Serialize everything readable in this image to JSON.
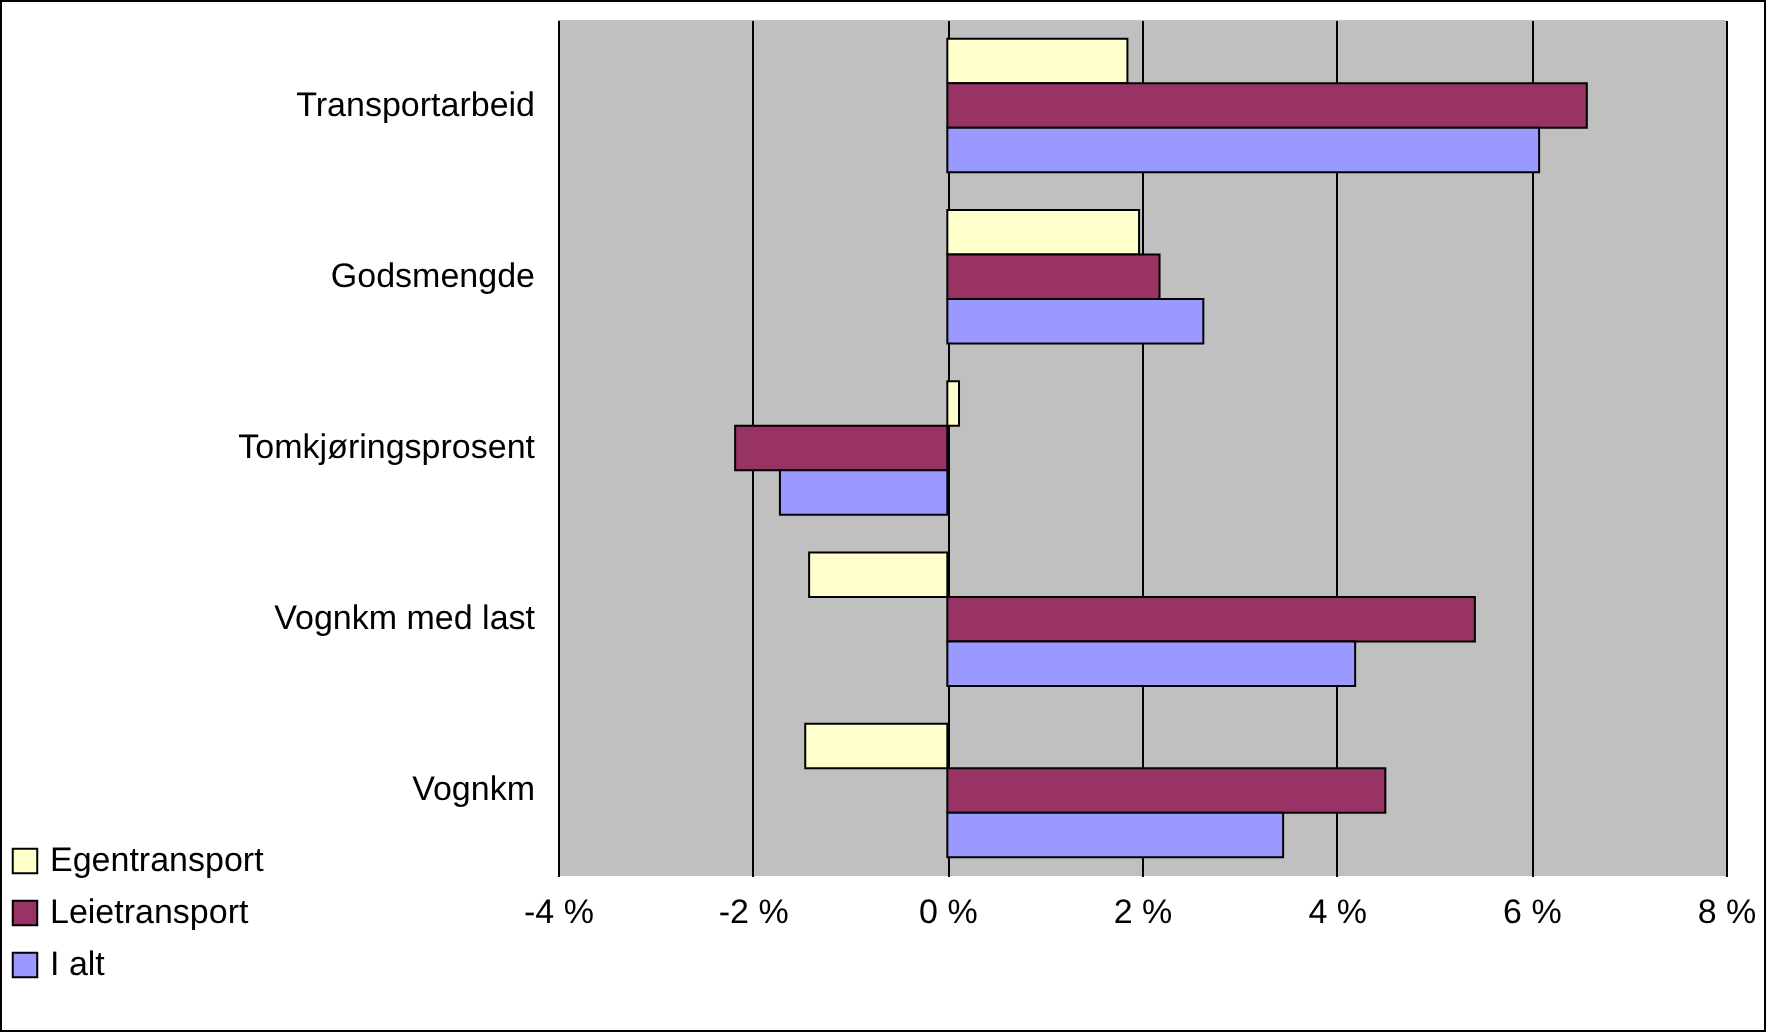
{
  "chart_data": {
    "type": "bar",
    "orientation": "horizontal",
    "categories": [
      "Transportarbeid",
      "Godsmengde",
      "Tomkjøringsprosent",
      "Vognkm med last",
      "Vognkm"
    ],
    "series": [
      {
        "name": "Egentransport",
        "color": "#ffffcc",
        "values": [
          1.85,
          1.97,
          0.12,
          -1.42,
          -1.46
        ]
      },
      {
        "name": "Leietransport",
        "color": "#993366",
        "values": [
          6.57,
          2.18,
          -2.18,
          5.42,
          4.5
        ]
      },
      {
        "name": "I alt",
        "color": "#9999ff",
        "values": [
          6.08,
          2.63,
          -1.72,
          4.19,
          3.45
        ]
      }
    ],
    "xlim": [
      -4,
      8
    ],
    "xticks": [
      {
        "value": -4,
        "label": "-4 %"
      },
      {
        "value": -2,
        "label": "-2 %"
      },
      {
        "value": 0,
        "label": "0 %"
      },
      {
        "value": 2,
        "label": "2 %"
      },
      {
        "value": 4,
        "label": "4 %"
      },
      {
        "value": 6,
        "label": "6 %"
      },
      {
        "value": 8,
        "label": "8 %"
      }
    ],
    "grid": "x",
    "legend": "bottom left"
  }
}
